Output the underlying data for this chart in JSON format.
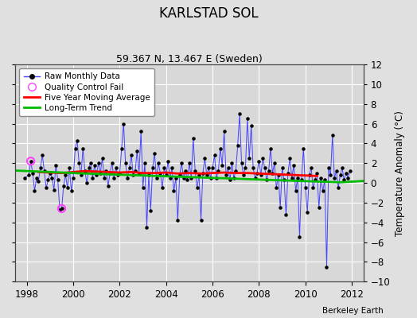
{
  "title": "KARLSTAD SOL",
  "subtitle": "59.367 N, 13.467 E (Sweden)",
  "ylabel": "Temperature Anomaly (°C)",
  "xlabel_credit": "Berkeley Earth",
  "ylim": [
    -10,
    12
  ],
  "xlim": [
    1997.5,
    2012.5
  ],
  "yticks": [
    -10,
    -8,
    -6,
    -4,
    -2,
    0,
    2,
    4,
    6,
    8,
    10,
    12
  ],
  "xticks": [
    1998,
    2000,
    2002,
    2004,
    2006,
    2008,
    2010,
    2012
  ],
  "bg_color": "#e0e0e0",
  "plot_bg_color": "#d8d8d8",
  "grid_color": "#ffffff",
  "raw_color": "#4444ff",
  "raw_marker_color": "#000000",
  "moving_avg_color": "#ff0000",
  "trend_color": "#00bb00",
  "qc_fail_color": "#ff44ff",
  "title_fontsize": 12,
  "subtitle_fontsize": 9,
  "raw_data": [
    [
      1997.917,
      0.5
    ],
    [
      1998.083,
      0.8
    ],
    [
      1998.167,
      2.2
    ],
    [
      1998.25,
      1.0
    ],
    [
      1998.333,
      -0.8
    ],
    [
      1998.417,
      0.5
    ],
    [
      1998.5,
      0.2
    ],
    [
      1998.583,
      1.5
    ],
    [
      1998.667,
      2.8
    ],
    [
      1998.75,
      1.2
    ],
    [
      1998.833,
      -0.5
    ],
    [
      1998.917,
      0.3
    ],
    [
      1999.0,
      1.0
    ],
    [
      1999.083,
      0.5
    ],
    [
      1999.167,
      -0.7
    ],
    [
      1999.25,
      1.8
    ],
    [
      1999.333,
      0.3
    ],
    [
      1999.417,
      -2.7
    ],
    [
      1999.5,
      -2.6
    ],
    [
      1999.583,
      -0.3
    ],
    [
      1999.667,
      0.8
    ],
    [
      1999.75,
      -0.5
    ],
    [
      1999.833,
      1.5
    ],
    [
      1999.917,
      -0.8
    ],
    [
      2000.0,
      0.5
    ],
    [
      2000.083,
      3.5
    ],
    [
      2000.167,
      4.3
    ],
    [
      2000.25,
      2.0
    ],
    [
      2000.333,
      0.8
    ],
    [
      2000.417,
      3.5
    ],
    [
      2000.5,
      1.2
    ],
    [
      2000.583,
      0.0
    ],
    [
      2000.667,
      1.5
    ],
    [
      2000.75,
      2.0
    ],
    [
      2000.833,
      0.5
    ],
    [
      2000.917,
      1.8
    ],
    [
      2001.0,
      0.8
    ],
    [
      2001.083,
      2.0
    ],
    [
      2001.167,
      1.0
    ],
    [
      2001.25,
      2.5
    ],
    [
      2001.333,
      0.5
    ],
    [
      2001.417,
      1.2
    ],
    [
      2001.5,
      -0.3
    ],
    [
      2001.583,
      1.0
    ],
    [
      2001.667,
      2.0
    ],
    [
      2001.75,
      0.5
    ],
    [
      2001.833,
      1.5
    ],
    [
      2001.917,
      0.8
    ],
    [
      2002.0,
      1.0
    ],
    [
      2002.083,
      3.5
    ],
    [
      2002.167,
      6.0
    ],
    [
      2002.25,
      2.0
    ],
    [
      2002.333,
      0.5
    ],
    [
      2002.417,
      1.5
    ],
    [
      2002.5,
      2.8
    ],
    [
      2002.583,
      0.8
    ],
    [
      2002.667,
      1.2
    ],
    [
      2002.75,
      3.2
    ],
    [
      2002.833,
      1.0
    ],
    [
      2002.917,
      5.2
    ],
    [
      2003.0,
      -0.5
    ],
    [
      2003.083,
      2.0
    ],
    [
      2003.167,
      -4.5
    ],
    [
      2003.25,
      0.8
    ],
    [
      2003.333,
      -2.8
    ],
    [
      2003.417,
      1.5
    ],
    [
      2003.5,
      3.0
    ],
    [
      2003.583,
      0.5
    ],
    [
      2003.667,
      2.0
    ],
    [
      2003.75,
      1.0
    ],
    [
      2003.833,
      -0.5
    ],
    [
      2003.917,
      1.5
    ],
    [
      2004.0,
      0.8
    ],
    [
      2004.083,
      2.2
    ],
    [
      2004.167,
      0.5
    ],
    [
      2004.25,
      1.5
    ],
    [
      2004.333,
      -0.8
    ],
    [
      2004.417,
      0.5
    ],
    [
      2004.5,
      -3.8
    ],
    [
      2004.583,
      0.8
    ],
    [
      2004.667,
      2.0
    ],
    [
      2004.75,
      0.5
    ],
    [
      2004.833,
      1.2
    ],
    [
      2004.917,
      0.3
    ],
    [
      2005.0,
      2.0
    ],
    [
      2005.083,
      0.5
    ],
    [
      2005.167,
      4.5
    ],
    [
      2005.25,
      1.2
    ],
    [
      2005.333,
      -0.5
    ],
    [
      2005.417,
      0.8
    ],
    [
      2005.5,
      -3.8
    ],
    [
      2005.583,
      1.0
    ],
    [
      2005.667,
      2.5
    ],
    [
      2005.75,
      0.8
    ],
    [
      2005.833,
      1.5
    ],
    [
      2005.917,
      0.5
    ],
    [
      2006.0,
      1.5
    ],
    [
      2006.083,
      2.8
    ],
    [
      2006.167,
      0.5
    ],
    [
      2006.25,
      1.2
    ],
    [
      2006.333,
      3.5
    ],
    [
      2006.417,
      1.8
    ],
    [
      2006.5,
      5.2
    ],
    [
      2006.583,
      0.8
    ],
    [
      2006.667,
      1.5
    ],
    [
      2006.75,
      0.3
    ],
    [
      2006.833,
      2.0
    ],
    [
      2006.917,
      0.5
    ],
    [
      2007.0,
      1.2
    ],
    [
      2007.083,
      3.8
    ],
    [
      2007.167,
      7.0
    ],
    [
      2007.25,
      2.0
    ],
    [
      2007.333,
      0.8
    ],
    [
      2007.417,
      1.5
    ],
    [
      2007.5,
      6.5
    ],
    [
      2007.583,
      2.5
    ],
    [
      2007.667,
      5.8
    ],
    [
      2007.75,
      1.5
    ],
    [
      2007.833,
      0.5
    ],
    [
      2007.917,
      1.0
    ],
    [
      2008.0,
      2.2
    ],
    [
      2008.083,
      0.8
    ],
    [
      2008.167,
      2.5
    ],
    [
      2008.25,
      1.5
    ],
    [
      2008.333,
      0.3
    ],
    [
      2008.417,
      1.2
    ],
    [
      2008.5,
      3.5
    ],
    [
      2008.583,
      1.0
    ],
    [
      2008.667,
      2.0
    ],
    [
      2008.75,
      -0.5
    ],
    [
      2008.833,
      0.8
    ],
    [
      2008.917,
      -2.5
    ],
    [
      2009.0,
      1.5
    ],
    [
      2009.083,
      0.3
    ],
    [
      2009.167,
      -3.2
    ],
    [
      2009.25,
      1.0
    ],
    [
      2009.333,
      2.5
    ],
    [
      2009.417,
      0.5
    ],
    [
      2009.5,
      1.8
    ],
    [
      2009.583,
      -0.8
    ],
    [
      2009.667,
      0.5
    ],
    [
      2009.75,
      -5.5
    ],
    [
      2009.833,
      0.3
    ],
    [
      2009.917,
      3.5
    ],
    [
      2010.0,
      -0.5
    ],
    [
      2010.083,
      -3.0
    ],
    [
      2010.167,
      0.8
    ],
    [
      2010.25,
      1.5
    ],
    [
      2010.333,
      -0.5
    ],
    [
      2010.417,
      0.3
    ],
    [
      2010.5,
      1.0
    ],
    [
      2010.583,
      -2.5
    ],
    [
      2010.667,
      0.5
    ],
    [
      2010.75,
      -0.8
    ],
    [
      2010.833,
      0.3
    ],
    [
      2010.917,
      -8.5
    ],
    [
      2011.0,
      1.5
    ],
    [
      2011.083,
      0.8
    ],
    [
      2011.167,
      4.8
    ],
    [
      2011.25,
      0.5
    ],
    [
      2011.333,
      1.2
    ],
    [
      2011.417,
      -0.5
    ],
    [
      2011.5,
      0.8
    ],
    [
      2011.583,
      1.5
    ],
    [
      2011.667,
      0.3
    ],
    [
      2011.75,
      1.0
    ],
    [
      2011.833,
      0.5
    ],
    [
      2011.917,
      1.2
    ]
  ],
  "qc_fail_points": [
    [
      1998.167,
      2.2
    ],
    [
      1999.5,
      -2.6
    ]
  ],
  "moving_avg_x": [
    1998.5,
    1999.0,
    1999.5,
    2000.0,
    2000.5,
    2001.0,
    2001.5,
    2002.0,
    2002.5,
    2003.0,
    2003.5,
    2004.0,
    2004.5,
    2005.0,
    2005.5,
    2006.0,
    2006.5,
    2007.0,
    2007.5,
    2008.0,
    2008.5,
    2009.0,
    2009.5,
    2010.0,
    2010.5
  ],
  "moving_avg_y": [
    1.1,
    1.05,
    1.0,
    1.1,
    1.2,
    1.15,
    1.1,
    1.05,
    1.1,
    1.0,
    1.0,
    1.05,
    0.95,
    1.0,
    0.95,
    1.0,
    1.05,
    1.0,
    1.0,
    0.95,
    0.9,
    0.85,
    0.8,
    0.75,
    0.7
  ],
  "trend_x": [
    1997.5,
    1998.5,
    1999.5,
    2000.5,
    2001.5,
    2002.5,
    2003.5,
    2004.5,
    2005.5,
    2006.5,
    2007.5,
    2008.5,
    2009.5,
    2010.5,
    2011.5,
    2012.5
  ],
  "trend_y": [
    1.25,
    1.15,
    1.05,
    0.95,
    0.87,
    0.79,
    0.71,
    0.63,
    0.55,
    0.47,
    0.38,
    0.3,
    0.22,
    0.14,
    0.06,
    0.2
  ]
}
